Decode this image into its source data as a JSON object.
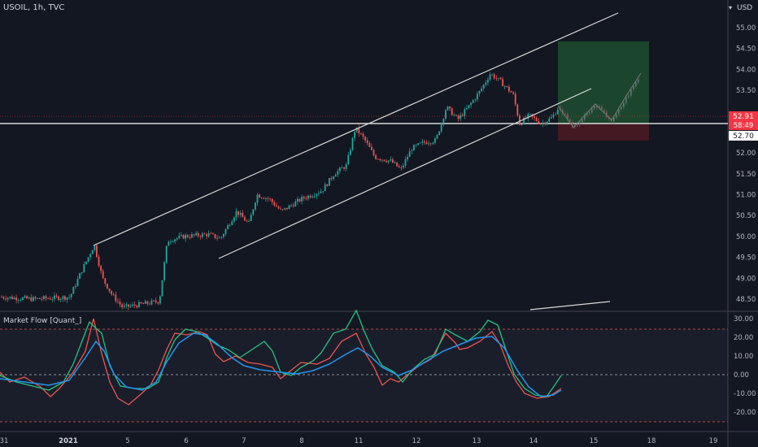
{
  "header": {
    "symbol_line": "USOIL, 1h, TVC"
  },
  "price_axis": {
    "currency": "USD",
    "ticks": [
      "55.00",
      "54.50",
      "54.00",
      "53.50",
      "53.00",
      "52.50",
      "52.00",
      "51.50",
      "51.00",
      "50.50",
      "50.00",
      "49.50",
      "49.00",
      "48.50"
    ],
    "tick_values": [
      55.0,
      54.5,
      54.0,
      53.5,
      53.0,
      52.5,
      52.0,
      51.5,
      51.0,
      50.5,
      50.0,
      49.5,
      49.0,
      48.5
    ],
    "labels": [
      {
        "text": "52.91",
        "value": 52.91,
        "color": "#f23645"
      },
      {
        "text": "58:49",
        "value": 52.78,
        "color": "#f23645"
      },
      {
        "text": "52.70",
        "value": 52.7,
        "color": "#ffffff"
      }
    ],
    "hidden_label": "53.00"
  },
  "indicator": {
    "title": "Market Flow [Quant_]",
    "ticks": [
      "30.00",
      "20.00",
      "10.00",
      "0.00",
      "-10.00",
      "-20.00"
    ],
    "tick_values": [
      30,
      20,
      10,
      0,
      -10,
      -20
    ]
  },
  "time_axis": {
    "labels": [
      "31",
      "2021",
      "5",
      "6",
      "7",
      "8",
      "11",
      "12",
      "13",
      "14",
      "15",
      "18",
      "19"
    ]
  },
  "colors": {
    "background": "#131722",
    "up": "#26a69a",
    "down": "#ef5350",
    "fast_line": "#ef5350",
    "signal_line": "#2196f3",
    "cross_line": "#26c281",
    "target_zone": "#1e4a2f",
    "stop_zone": "#4a1a22",
    "channel": "#d8d8d8"
  }
}
